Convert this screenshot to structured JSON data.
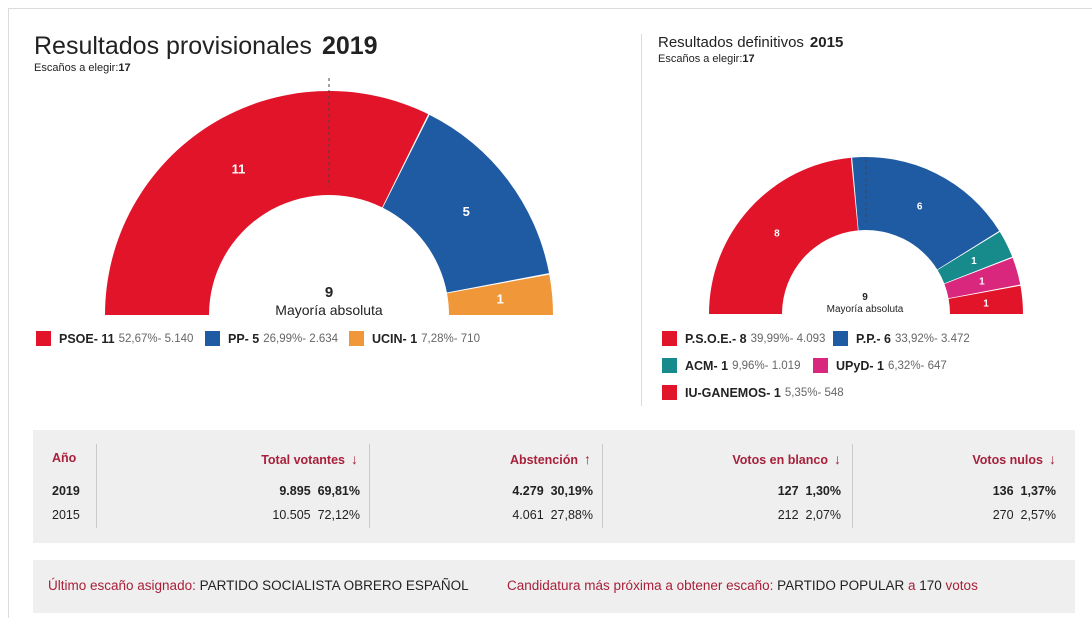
{
  "main": {
    "title": "Resultados provisionales",
    "year": "2019",
    "seats_label": "Escaños a elegir:",
    "seats_total": "17",
    "majority_number": "9",
    "majority_label": "Mayoría absoluta",
    "legend": [
      {
        "name": "PSOE- 11",
        "stats": "52,67%- 5.140"
      },
      {
        "name": "PP- 5",
        "stats": "26,99%- 2.634"
      },
      {
        "name": "UCIN- 1",
        "stats": "7,28%- 710"
      }
    ]
  },
  "side": {
    "title": "Resultados definitivos",
    "year": "2015",
    "seats_label": "Escaños a elegir:",
    "seats_total": "17",
    "majority_number": "9",
    "majority_label": "Mayoría absoluta",
    "legend": [
      {
        "name": "P.S.O.E.- 8",
        "stats": "39,99%- 4.093"
      },
      {
        "name": "P.P.- 6",
        "stats": "33,92%- 3.472"
      },
      {
        "name": "ACM- 1",
        "stats": "9,96%- 1.019"
      },
      {
        "name": "UPyD- 1",
        "stats": "6,32%- 647"
      },
      {
        "name": "IU-GANEMOS- 1",
        "stats": "5,35%- 548"
      }
    ]
  },
  "chart_data": [
    {
      "type": "pie",
      "title": "Resultados provisionales 2019",
      "categories": [
        "PSOE",
        "PP",
        "UCIN"
      ],
      "values": [
        11,
        5,
        1
      ],
      "percent": [
        52.67,
        26.99,
        7.28
      ],
      "votes": [
        5140,
        2634,
        710
      ],
      "colors": [
        "#e2142a",
        "#1f5ba3",
        "#f0973a"
      ],
      "majority": 9
    },
    {
      "type": "pie",
      "title": "Resultados definitivos 2015",
      "categories": [
        "P.S.O.E.",
        "P.P.",
        "ACM",
        "UPyD",
        "IU-GANEMOS"
      ],
      "values": [
        8,
        6,
        1,
        1,
        1
      ],
      "percent": [
        39.99,
        33.92,
        9.96,
        6.32,
        5.35
      ],
      "votes": [
        4093,
        3472,
        1019,
        647,
        548
      ],
      "colors": [
        "#e2142a",
        "#1f5ba3",
        "#178a8c",
        "#d8277c",
        "#e2142a"
      ],
      "majority": 9
    }
  ],
  "table": {
    "headers": {
      "year": "Año",
      "total": "Total votantes",
      "abstention": "Abstención",
      "blank": "Votos en blanco",
      "null": "Votos nulos"
    },
    "arrows": {
      "total": "↓",
      "abstention": "↑",
      "blank": "↓",
      "null": "↓"
    },
    "rows": [
      {
        "year": "2019",
        "total": "9.895",
        "total_pct": "69,81%",
        "abst": "4.279",
        "abst_pct": "30,19%",
        "blank": "127",
        "blank_pct": "1,30%",
        "null": "136",
        "null_pct": "1,37%"
      },
      {
        "year": "2015",
        "total": "10.505",
        "total_pct": "72,12%",
        "abst": "4.061",
        "abst_pct": "27,88%",
        "blank": "212",
        "blank_pct": "2,07%",
        "null": "270",
        "null_pct": "2,57%"
      }
    ]
  },
  "footer": {
    "last_label": "Último escaño asignado:",
    "last_value": "PARTIDO SOCIALISTA OBRERO ESPAÑOL",
    "next_label": "Candidatura más próxima a obtener escaño:",
    "next_value": "PARTIDO POPULAR",
    "next_mid": "a",
    "next_votes": "170",
    "next_votes_label": "votos"
  }
}
